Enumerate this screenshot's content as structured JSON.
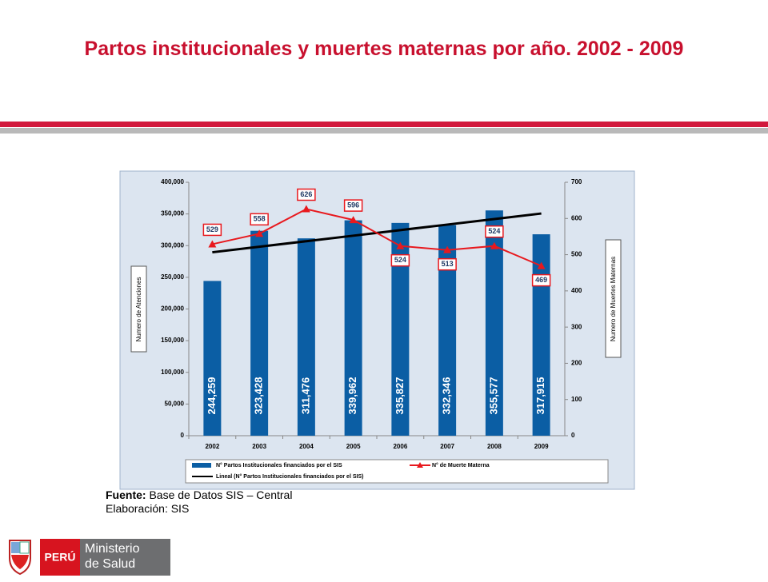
{
  "chart_data": {
    "type": "bar-line",
    "title": "Partos institucionales y muertes maternas por año. 2002 - 2009",
    "y_label": "Numero de Atenciones",
    "y2_label": "Numero de Muertes Maternas",
    "categories": [
      "2002",
      "2003",
      "2004",
      "2005",
      "2006",
      "2007",
      "2008",
      "2009"
    ],
    "series": [
      {
        "name": "N° Partos Institucionales financiados por el SIS",
        "type": "bar",
        "color": "#0b5ea4",
        "values": [
          244259,
          323428,
          311476,
          339962,
          335827,
          332346,
          355577,
          317915
        ],
        "value_labels": [
          "244,259",
          "323,428",
          "311,476",
          "339,962",
          "335,827",
          "332,346",
          "355,577",
          "317,915"
        ]
      },
      {
        "name": "N° de Muerte Materna",
        "type": "line",
        "axis": "y2",
        "color": "#e8191e",
        "values": [
          529,
          558,
          626,
          596,
          524,
          513,
          524,
          469
        ]
      },
      {
        "name": "Lineal (N° Partos Institucionales financiados por el SIS)",
        "type": "trend",
        "color": "#000000",
        "values": [
          289500,
          298200,
          307000,
          315700,
          324500,
          333200,
          342000,
          350700
        ]
      }
    ],
    "ylim": [
      0,
      400000
    ],
    "yticks": [
      0,
      {
        "value": 50000,
        "label": "50,000"
      },
      {
        "value": 100000,
        "label": "100,000"
      },
      {
        "value": 150000,
        "label": "150,000"
      },
      {
        "value": 200000,
        "label": "200,000"
      },
      {
        "value": 250000,
        "label": "250,000"
      },
      {
        "value": 300000,
        "label": "300,000"
      },
      {
        "value": 350000,
        "label": "350,000"
      },
      {
        "value": 400000,
        "label": "400,000"
      }
    ],
    "y2lim": [
      0,
      700
    ],
    "y2ticks": [
      0,
      100,
      200,
      300,
      400,
      500,
      600,
      700
    ],
    "legend": "bottom"
  },
  "source": {
    "label": "Fuente:",
    "text": " Base de Datos SIS – Central",
    "credit": "Elaboración: SIS"
  },
  "logo": {
    "country": "PERÚ",
    "line1": "Ministerio",
    "line2": "de Salud"
  }
}
